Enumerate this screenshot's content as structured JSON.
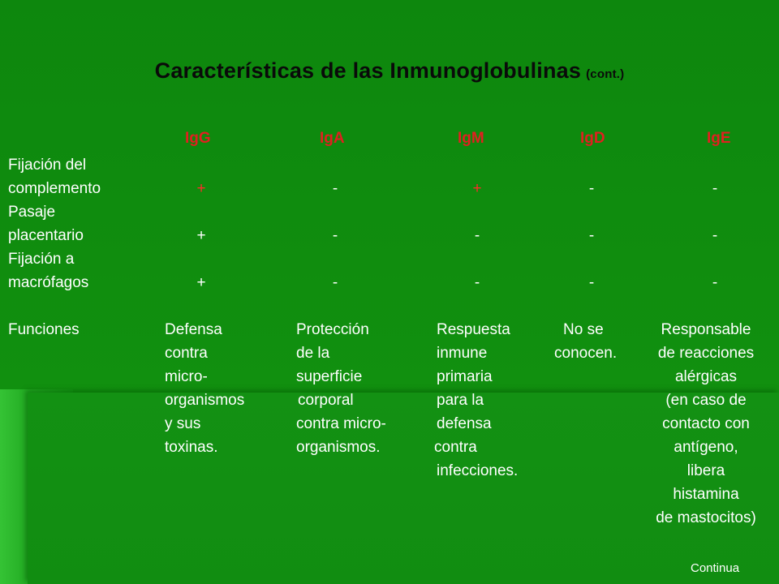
{
  "title": {
    "main": "Características de las Inmunoglobulinas",
    "suffix": "(cont.)"
  },
  "columns": [
    "IgG",
    "IgA",
    "IgM",
    "IgD",
    "IgE"
  ],
  "rows": [
    {
      "label_1": "Fijación del",
      "label_2": "complemento",
      "values": [
        "+",
        "-",
        "+",
        "-",
        "-"
      ]
    },
    {
      "label_1": "Pasaje",
      "label_2": "placentario",
      "values": [
        "+",
        "-",
        "-",
        "-",
        "-"
      ]
    },
    {
      "label_1": "Fijación a",
      "label_2": "macrófagos",
      "values": [
        "+",
        "-",
        "-",
        "-",
        "-"
      ]
    }
  ],
  "funciones": {
    "label": "Funciones",
    "igg": [
      "Defensa",
      "contra",
      "micro-",
      "organismos",
      "y sus",
      "toxinas."
    ],
    "iga": [
      "Protección",
      "de la",
      "superficie",
      "corporal",
      "contra micro-",
      "organismos."
    ],
    "igm": [
      "Respuesta",
      "inmune",
      "primaria",
      "para la",
      "defensa",
      "contra",
      "infecciones."
    ],
    "igd": [
      "No se",
      "conocen."
    ],
    "ige": [
      "Responsable",
      "de reacciones",
      "alérgicas",
      "(en caso de",
      "contacto con",
      "antígeno,",
      "libera",
      "histamina",
      "de mastocitos)"
    ]
  },
  "footer": {
    "continue_label": "Continua"
  },
  "colors": {
    "background": "#118a11",
    "header_red": "#e02020",
    "plus_red": "#ff2a2a",
    "text": "#ffffff"
  }
}
